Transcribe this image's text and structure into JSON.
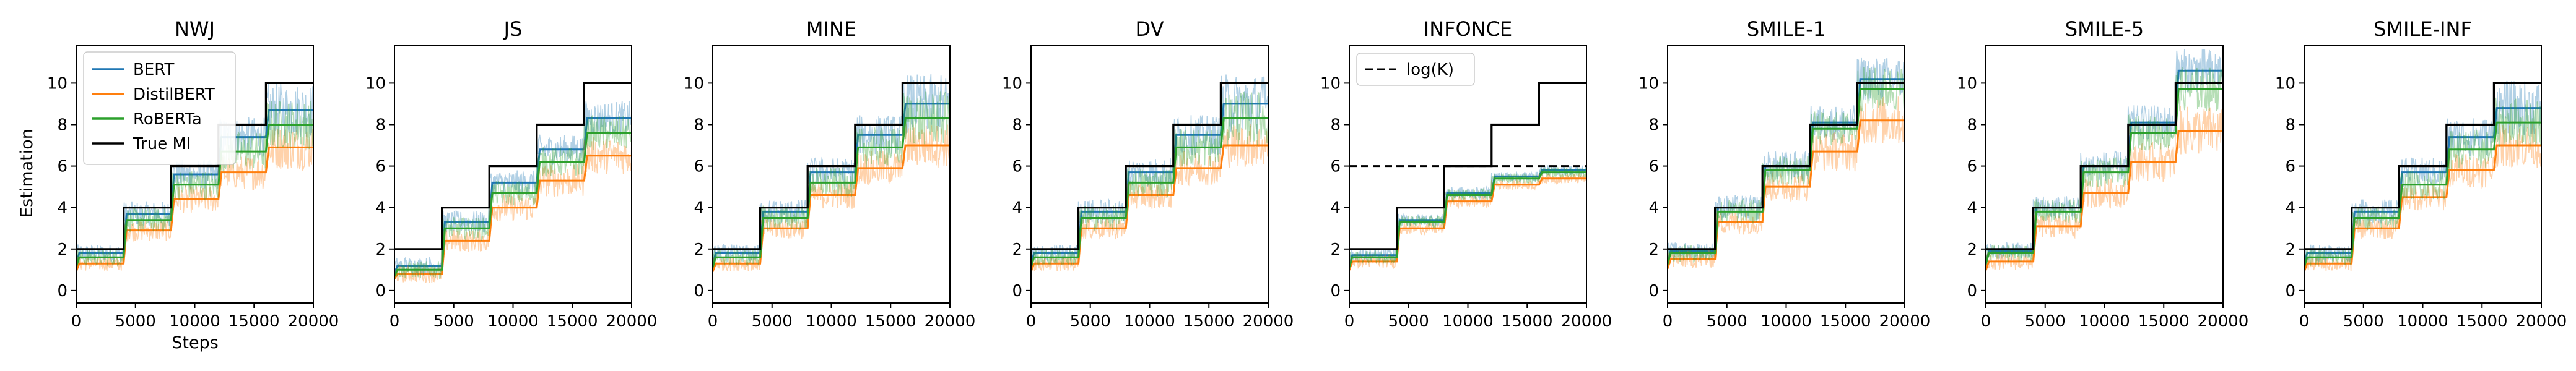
{
  "chart_data": {
    "type": "line",
    "ylabel": "Estimation",
    "xlabel": "Steps",
    "xlim": [
      0,
      20000
    ],
    "ylim": [
      -0.6,
      11.8
    ],
    "xticks": [
      0,
      5000,
      10000,
      15000,
      20000
    ],
    "xtick_labels": [
      "0",
      "5000",
      "10000",
      "15000",
      "20000"
    ],
    "yticks": [
      0,
      2,
      4,
      6,
      8,
      10
    ],
    "ytick_labels": [
      "0",
      "2",
      "4",
      "6",
      "8",
      "10"
    ],
    "colors": {
      "BERT": "#1f77b4",
      "DistilBERT": "#ff7f0e",
      "RoBERTa": "#2ca02c",
      "True MI": "#000000",
      "log(K)": "#000000"
    },
    "legend": {
      "panel": "NWJ",
      "location": "upper-left",
      "entries": [
        "BERT",
        "DistilBERT",
        "RoBERTa",
        "True MI"
      ]
    },
    "steps": [
      [
        0,
        4000
      ],
      [
        4000,
        8000
      ],
      [
        8000,
        12000
      ],
      [
        12000,
        16000
      ],
      [
        16000,
        20000
      ]
    ],
    "true_mi": [
      2,
      4,
      6,
      8,
      10
    ],
    "panels": [
      {
        "title": "NWJ",
        "series": [
          {
            "name": "BERT",
            "values": [
              1.8,
              3.7,
              5.6,
              7.4,
              8.7
            ],
            "spread": [
              0.35,
              0.5,
              0.6,
              0.8,
              1.1
            ]
          },
          {
            "name": "DistilBERT",
            "values": [
              1.3,
              2.9,
              4.4,
              5.7,
              6.9
            ],
            "spread": [
              0.3,
              0.45,
              0.55,
              0.7,
              0.9
            ]
          },
          {
            "name": "RoBERTa",
            "values": [
              1.6,
              3.4,
              5.1,
              6.7,
              8.0
            ],
            "spread": [
              0.35,
              0.5,
              0.6,
              0.8,
              1.0
            ]
          }
        ]
      },
      {
        "title": "JS",
        "series": [
          {
            "name": "BERT",
            "values": [
              1.2,
              3.3,
              5.2,
              6.8,
              8.3
            ],
            "spread": [
              0.35,
              0.45,
              0.5,
              0.6,
              0.7
            ]
          },
          {
            "name": "DistilBERT",
            "values": [
              0.8,
              2.4,
              4.0,
              5.3,
              6.5
            ],
            "spread": [
              0.35,
              0.45,
              0.55,
              0.65,
              0.75
            ]
          },
          {
            "name": "RoBERTa",
            "values": [
              1.0,
              3.0,
              4.7,
              6.2,
              7.6
            ],
            "spread": [
              0.35,
              0.45,
              0.5,
              0.6,
              0.7
            ]
          }
        ]
      },
      {
        "title": "MINE",
        "series": [
          {
            "name": "BERT",
            "values": [
              1.8,
              3.8,
              5.7,
              7.5,
              9.0
            ],
            "spread": [
              0.35,
              0.5,
              0.6,
              0.8,
              1.2
            ]
          },
          {
            "name": "DistilBERT",
            "values": [
              1.3,
              3.0,
              4.6,
              5.9,
              7.0
            ],
            "spread": [
              0.3,
              0.45,
              0.55,
              0.7,
              0.9
            ]
          },
          {
            "name": "RoBERTa",
            "values": [
              1.6,
              3.5,
              5.2,
              6.9,
              8.3
            ],
            "spread": [
              0.35,
              0.5,
              0.6,
              0.8,
              1.1
            ]
          }
        ]
      },
      {
        "title": "DV",
        "series": [
          {
            "name": "BERT",
            "values": [
              1.8,
              3.8,
              5.7,
              7.5,
              9.0
            ],
            "spread": [
              0.35,
              0.5,
              0.6,
              0.8,
              1.2
            ]
          },
          {
            "name": "DistilBERT",
            "values": [
              1.3,
              3.0,
              4.6,
              5.9,
              7.0
            ],
            "spread": [
              0.3,
              0.45,
              0.55,
              0.7,
              0.9
            ]
          },
          {
            "name": "RoBERTa",
            "values": [
              1.6,
              3.5,
              5.2,
              6.9,
              8.3
            ],
            "spread": [
              0.35,
              0.5,
              0.6,
              0.8,
              1.1
            ]
          }
        ]
      },
      {
        "title": "INFONCE",
        "show_logk": true,
        "logk": 6,
        "logk_label": "log(K)",
        "series": [
          {
            "name": "BERT",
            "values": [
              1.7,
              3.4,
              4.7,
              5.5,
              5.8
            ],
            "spread": [
              0.25,
              0.25,
              0.25,
              0.2,
              0.2
            ]
          },
          {
            "name": "DistilBERT",
            "values": [
              1.4,
              3.0,
              4.3,
              5.1,
              5.4
            ],
            "spread": [
              0.25,
              0.25,
              0.25,
              0.2,
              0.2
            ]
          },
          {
            "name": "RoBERTa",
            "values": [
              1.6,
              3.3,
              4.6,
              5.4,
              5.7
            ],
            "spread": [
              0.25,
              0.25,
              0.25,
              0.2,
              0.2
            ]
          }
        ]
      },
      {
        "title": "SMILE-1",
        "series": [
          {
            "name": "BERT",
            "values": [
              1.9,
              4.0,
              6.0,
              8.1,
              10.2
            ],
            "spread": [
              0.35,
              0.5,
              0.6,
              0.7,
              0.9
            ]
          },
          {
            "name": "DistilBERT",
            "values": [
              1.5,
              3.3,
              5.0,
              6.7,
              8.2
            ],
            "spread": [
              0.35,
              0.5,
              0.6,
              0.8,
              1.0
            ]
          },
          {
            "name": "RoBERTa",
            "values": [
              1.8,
              3.8,
              5.8,
              7.8,
              9.7
            ],
            "spread": [
              0.35,
              0.5,
              0.6,
              0.7,
              0.9
            ]
          }
        ]
      },
      {
        "title": "SMILE-5",
        "series": [
          {
            "name": "BERT",
            "values": [
              1.9,
              4.0,
              6.0,
              8.1,
              10.6
            ],
            "spread": [
              0.35,
              0.5,
              0.6,
              0.7,
              0.9
            ]
          },
          {
            "name": "DistilBERT",
            "values": [
              1.4,
              3.1,
              4.7,
              6.2,
              7.7
            ],
            "spread": [
              0.35,
              0.5,
              0.6,
              0.8,
              1.0
            ]
          },
          {
            "name": "RoBERTa",
            "values": [
              1.8,
              3.8,
              5.7,
              7.6,
              9.7
            ],
            "spread": [
              0.35,
              0.5,
              0.6,
              0.7,
              0.9
            ]
          }
        ]
      },
      {
        "title": "SMILE-INF",
        "series": [
          {
            "name": "BERT",
            "values": [
              1.8,
              3.8,
              5.7,
              7.4,
              8.8
            ],
            "spread": [
              0.35,
              0.5,
              0.6,
              0.8,
              1.1
            ]
          },
          {
            "name": "DistilBERT",
            "values": [
              1.3,
              3.0,
              4.5,
              5.8,
              7.0
            ],
            "spread": [
              0.3,
              0.45,
              0.55,
              0.7,
              0.9
            ]
          },
          {
            "name": "RoBERTa",
            "values": [
              1.6,
              3.5,
              5.1,
              6.8,
              8.1
            ],
            "spread": [
              0.35,
              0.5,
              0.6,
              0.8,
              1.0
            ]
          }
        ]
      }
    ]
  }
}
